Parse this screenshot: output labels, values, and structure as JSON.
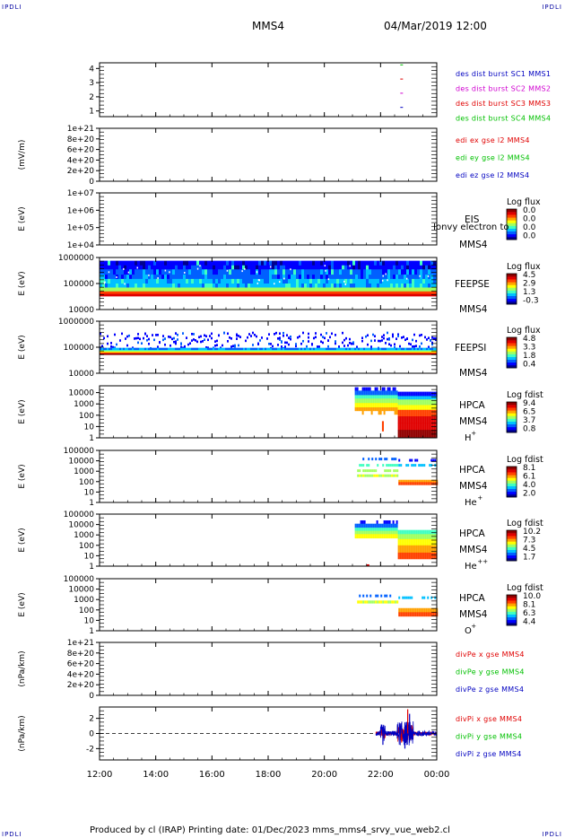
{
  "header": {
    "corner_left": "IPDLI",
    "corner_right": "IPDLI",
    "title": "MMS4",
    "datetime": "04/Mar/2019 12:00"
  },
  "footer": {
    "text": "Produced by cl (IRAP)   Printing date: 01/Dec/2023   mms_mms4_srvy_vue_web2.cl",
    "corner_left": "IPDLI",
    "corner_right": "IPDLI"
  },
  "colors": {
    "axis": "#000000",
    "red": "#e00000",
    "green": "#00c000",
    "blue": "#0000c0",
    "magenta": "#d000d0"
  },
  "chart_data": [
    {
      "type": "line",
      "panel": "burst",
      "ylabel": "",
      "yticks": [
        "1",
        "2",
        "3",
        "4"
      ],
      "ylim": [
        0.6,
        4.4
      ],
      "xlim": [
        "12:00",
        "00:00"
      ],
      "series": [
        {
          "name": "des dist burst SC1 MMS1",
          "color": "#0000c0",
          "y": 1,
          "points": [
            [
              "22:45",
              1
            ]
          ]
        },
        {
          "name": "des dist burst SC2 MMS2",
          "color": "#d000d0",
          "y": 2,
          "points": [
            [
              "22:45",
              2
            ]
          ]
        },
        {
          "name": "des dist burst SC3 MMS3",
          "color": "#e00000",
          "y": 3,
          "points": [
            [
              "22:45",
              3
            ]
          ]
        },
        {
          "name": "des dist burst SC4 MMS4",
          "color": "#00c000",
          "y": 4,
          "points": [
            [
              "22:45",
              4
            ]
          ]
        }
      ]
    },
    {
      "type": "line",
      "panel": "edi",
      "ylabel": "(mV/m)",
      "yticks": [
        "0",
        "2e+20",
        "4e+20",
        "6e+20",
        "8e+20",
        "1e+21"
      ],
      "ylim": [
        0,
        1e+21
      ],
      "series": [
        {
          "name": "edi ex gse l2 MMS4",
          "color": "#e00000"
        },
        {
          "name": "edi ey gse l2 MMS4",
          "color": "#00c000"
        },
        {
          "name": "edi ez gse l2 MMS4",
          "color": "#0000c0"
        }
      ]
    },
    {
      "type": "heatmap",
      "panel": "eis",
      "ylabel": "E (eV)",
      "yticks": [
        "1e+04",
        "1e+05",
        "1e+06",
        "1e+07"
      ],
      "ylim": [
        10000.0,
        10000000.0
      ],
      "log_y": true,
      "instrument": "EIS",
      "instrument_extra": "Ionvy electron to",
      "spacecraft": "MMS4",
      "colorbar_title": "Log flux",
      "colorbar_ticks": [
        "0.0",
        "0.0",
        "0.0",
        "0.0"
      ]
    },
    {
      "type": "heatmap",
      "panel": "feepse",
      "ylabel": "E (eV)",
      "yticks": [
        "10000",
        "100000",
        "1000000"
      ],
      "ylim": [
        10000.0,
        1000000.0
      ],
      "log_y": true,
      "instrument": "FEEPSE",
      "spacecraft": "MMS4",
      "colorbar_title": "Log flux",
      "colorbar_ticks": [
        "4.5",
        "2.9",
        "1.3",
        "-0.3"
      ]
    },
    {
      "type": "heatmap",
      "panel": "feepsi",
      "ylabel": "E (eV)",
      "yticks": [
        "10000",
        "100000",
        "1000000"
      ],
      "ylim": [
        10000.0,
        1000000.0
      ],
      "log_y": true,
      "instrument": "FEEPSI",
      "spacecraft": "MMS4",
      "colorbar_title": "Log flux",
      "colorbar_ticks": [
        "4.8",
        "3.3",
        "1.8",
        "0.4"
      ]
    },
    {
      "type": "heatmap",
      "panel": "hpca_h",
      "ylabel": "E (eV)",
      "yticks": [
        "1",
        "10",
        "100",
        "1000",
        "10000"
      ],
      "ylim": [
        1,
        40000
      ],
      "log_y": true,
      "instrument": "HPCA",
      "spacecraft": "MMS4",
      "species": "H",
      "species_sup": "+",
      "colorbar_title": "Log fdist",
      "colorbar_ticks": [
        "9.4",
        "6.5",
        "3.7",
        "0.8"
      ]
    },
    {
      "type": "heatmap",
      "panel": "hpca_he",
      "ylabel": "E (eV)",
      "yticks": [
        "1",
        "10",
        "100",
        "1000",
        "10000",
        "100000"
      ],
      "ylim": [
        1,
        100000
      ],
      "log_y": true,
      "instrument": "HPCA",
      "spacecraft": "MMS4",
      "species": "He",
      "species_sup": "+",
      "colorbar_title": "Log fdist",
      "colorbar_ticks": [
        "8.1",
        "6.1",
        "4.0",
        "2.0"
      ]
    },
    {
      "type": "heatmap",
      "panel": "hpca_hepp",
      "ylabel": "E (eV)",
      "yticks": [
        "1",
        "10",
        "100",
        "1000",
        "10000",
        "100000"
      ],
      "ylim": [
        1,
        100000
      ],
      "log_y": true,
      "instrument": "HPCA",
      "spacecraft": "MMS4",
      "species": "He",
      "species_sup": "++",
      "colorbar_title": "Log fdist",
      "colorbar_ticks": [
        "10.2",
        "7.3",
        "4.5",
        "1.7"
      ]
    },
    {
      "type": "heatmap",
      "panel": "hpca_o",
      "ylabel": "E (eV)",
      "yticks": [
        "1",
        "10",
        "100",
        "1000",
        "10000",
        "100000"
      ],
      "ylim": [
        1,
        100000
      ],
      "log_y": true,
      "instrument": "HPCA",
      "spacecraft": "MMS4",
      "species": "O",
      "species_sup": "+",
      "colorbar_title": "Log fdist",
      "colorbar_ticks": [
        "10.0",
        "8.1",
        "6.3",
        "4.4"
      ]
    },
    {
      "type": "line",
      "panel": "divpe",
      "ylabel": "(nPa/km)",
      "yticks": [
        "0",
        "2e+20",
        "4e+20",
        "6e+20",
        "8e+20",
        "1e+21"
      ],
      "ylim": [
        0,
        1e+21
      ],
      "series": [
        {
          "name": "divPe x gse MMS4",
          "color": "#e00000"
        },
        {
          "name": "divPe y gse MMS4",
          "color": "#00c000"
        },
        {
          "name": "divPe z gse MMS4",
          "color": "#0000c0"
        }
      ]
    },
    {
      "type": "line",
      "panel": "divpi",
      "ylabel": "(nPa/km)",
      "yticks": [
        "-2",
        "0",
        "2"
      ],
      "ylim": [
        -3.5,
        3.5
      ],
      "series": [
        {
          "name": "divPi x gse MMS4",
          "color": "#e00000"
        },
        {
          "name": "divPi y gse MMS4",
          "color": "#00c000"
        },
        {
          "name": "divPi z gse MMS4",
          "color": "#0000c0"
        }
      ]
    }
  ],
  "xaxis": {
    "ticks": [
      "12:00",
      "14:00",
      "16:00",
      "18:00",
      "20:00",
      "22:00",
      "00:00"
    ]
  }
}
